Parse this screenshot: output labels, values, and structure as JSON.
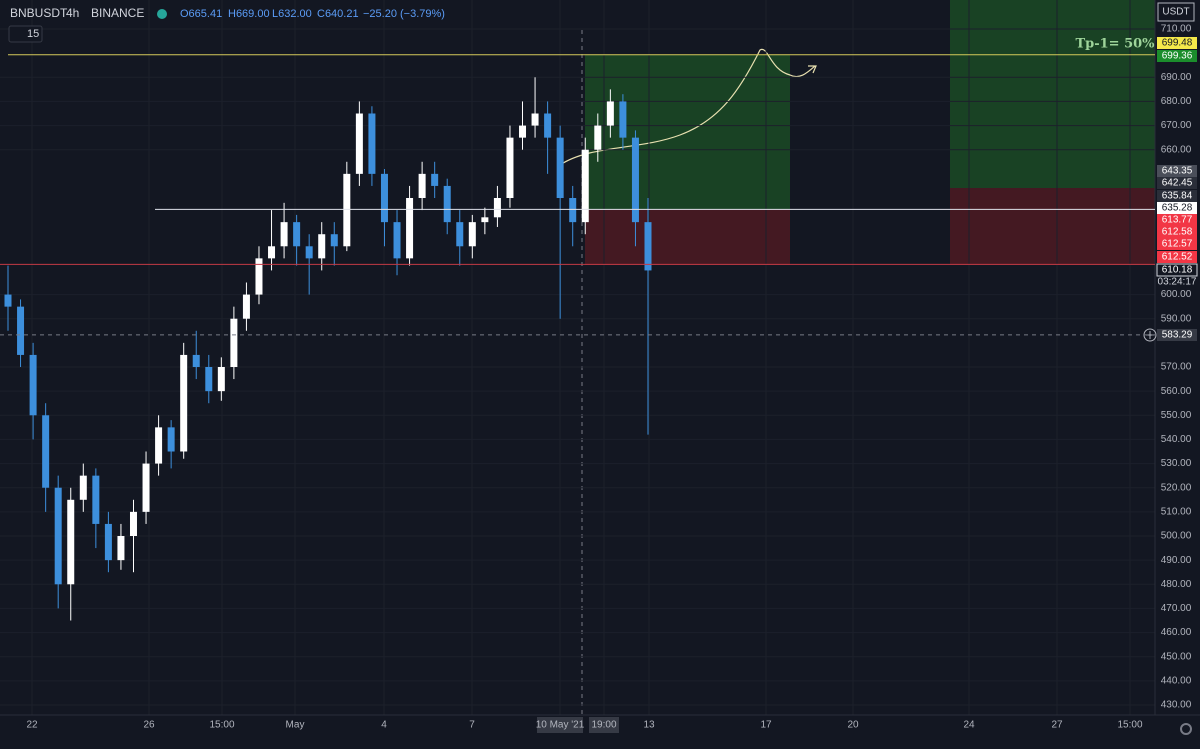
{
  "header": {
    "symbol": "BNBUSDT",
    "interval": "4h",
    "exchange": "BINANCE",
    "ohlc": [
      "O665.41",
      "H669.00",
      "L632.00",
      "C640.21",
      "−25.20 (−3.79%)"
    ],
    "indicator_length": "15"
  },
  "chart": {
    "type": "candlestick",
    "currency": "USDT",
    "annotation": "Tp-1= 50%",
    "up_color": "#ffffff",
    "down_color": "#3d8fdc",
    "ylim": [
      430,
      710
    ],
    "yticks": [
      {
        "value": 710,
        "label": "710.00"
      },
      {
        "value": 690,
        "label": "690.00"
      },
      {
        "value": 680,
        "label": "680.00"
      },
      {
        "value": 670,
        "label": "670.00"
      },
      {
        "value": 660,
        "label": "660.00"
      },
      {
        "value": 600,
        "label": "600.00"
      },
      {
        "value": 590,
        "label": "590.00"
      },
      {
        "value": 570,
        "label": "570.00"
      },
      {
        "value": 560,
        "label": "560.00"
      },
      {
        "value": 550,
        "label": "550.00"
      },
      {
        "value": 540,
        "label": "540.00"
      },
      {
        "value": 530,
        "label": "530.00"
      },
      {
        "value": 520,
        "label": "520.00"
      },
      {
        "value": 510,
        "label": "510.00"
      },
      {
        "value": 500,
        "label": "500.00"
      },
      {
        "value": 490,
        "label": "490.00"
      },
      {
        "value": 480,
        "label": "480.00"
      },
      {
        "value": 470,
        "label": "470.00"
      },
      {
        "value": 460,
        "label": "460.00"
      },
      {
        "value": 450,
        "label": "450.00"
      },
      {
        "value": 440,
        "label": "440.00"
      },
      {
        "value": 430,
        "label": "430.00"
      }
    ],
    "time_labels": [
      "22",
      "26",
      "15:00",
      "May",
      "4",
      "7",
      "10 May '21",
      "19:00",
      "13",
      "17",
      "20",
      "24",
      "27",
      "15:00"
    ],
    "price_tags": [
      {
        "price": 699.48,
        "color": "#f5e94a"
      },
      {
        "price": 699.36,
        "color": "#1b8d2c"
      },
      {
        "price": 643.35,
        "color": "#4a4e59"
      },
      {
        "price": 642.45,
        "color": "#2a2e39"
      },
      {
        "price": 635.84,
        "color": "#2a2e39"
      },
      {
        "price": 635.28,
        "color": "#ffffff"
      },
      {
        "price": 613.77,
        "color": "#f23645"
      },
      {
        "price": 612.58,
        "color": "#f23645"
      },
      {
        "price": 612.57,
        "color": "#f23645"
      },
      {
        "price": 612.52,
        "color": "#f23645"
      },
      {
        "price": 610.18,
        "color": "#131722"
      },
      {
        "price": 583.29,
        "color": "#363a45"
      }
    ],
    "countdown": "03:24:17",
    "open": [
      600,
      595,
      575,
      550,
      520,
      480,
      515,
      525,
      505,
      490,
      500,
      510,
      530,
      545,
      535,
      575,
      570,
      560,
      570,
      590,
      600,
      615,
      620,
      630,
      620,
      615,
      625,
      620,
      650,
      675,
      650,
      630,
      615,
      640,
      650,
      645,
      630,
      620,
      630,
      632,
      640,
      665,
      670,
      675,
      665,
      640,
      630,
      660,
      670,
      680,
      665,
      630
    ],
    "high": [
      612,
      598,
      580,
      555,
      525,
      520,
      530,
      528,
      510,
      505,
      515,
      535,
      550,
      548,
      580,
      585,
      575,
      574,
      595,
      605,
      620,
      635,
      638,
      633,
      625,
      630,
      630,
      655,
      680,
      678,
      652,
      635,
      645,
      655,
      655,
      648,
      635,
      633,
      636,
      645,
      670,
      680,
      690,
      680,
      670,
      645,
      665,
      675,
      685,
      683,
      668,
      640
    ],
    "low": [
      585,
      570,
      540,
      510,
      470,
      465,
      510,
      495,
      485,
      486,
      485,
      505,
      525,
      528,
      532,
      565,
      555,
      556,
      565,
      585,
      596,
      610,
      615,
      612,
      600,
      610,
      612,
      618,
      645,
      645,
      620,
      608,
      612,
      635,
      640,
      625,
      612,
      615,
      625,
      628,
      636,
      660,
      665,
      650,
      590,
      620,
      625,
      655,
      665,
      660,
      620,
      542
    ],
    "close": [
      595,
      575,
      550,
      520,
      480,
      515,
      525,
      505,
      490,
      500,
      510,
      530,
      545,
      535,
      575,
      570,
      560,
      570,
      590,
      600,
      615,
      620,
      630,
      620,
      615,
      625,
      620,
      650,
      675,
      650,
      630,
      615,
      640,
      650,
      645,
      630,
      620,
      630,
      632,
      640,
      665,
      670,
      675,
      665,
      640,
      630,
      660,
      670,
      680,
      665,
      630,
      610
    ]
  }
}
